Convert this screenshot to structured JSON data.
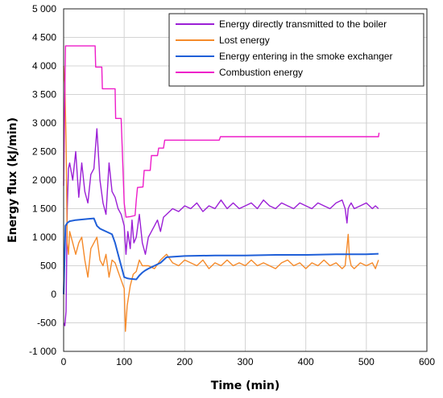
{
  "chart_data": {
    "type": "line",
    "title": "",
    "xlabel": "Time (min)",
    "ylabel": "Energy flux (kJ/min)",
    "xlim": [
      0,
      600
    ],
    "ylim": [
      -1000,
      5000
    ],
    "x_ticks": [
      "0",
      "100",
      "200",
      "300",
      "400",
      "500",
      "600"
    ],
    "y_ticks": [
      "-1 000",
      "-500",
      "0",
      "500",
      "1 000",
      "1 500",
      "2 000",
      "2 500",
      "3 000",
      "3 500",
      "4 000",
      "4 500",
      "5 000"
    ],
    "grid": true,
    "legend_position": "top-right",
    "series": [
      {
        "name": "Energy directly transmitted to the boiler",
        "color": "#9b1fd6",
        "x": [
          0,
          2,
          4,
          6,
          8,
          10,
          15,
          20,
          25,
          30,
          35,
          40,
          45,
          50,
          55,
          60,
          65,
          70,
          75,
          80,
          85,
          90,
          95,
          100,
          103,
          106,
          110,
          113,
          116,
          120,
          125,
          130,
          135,
          140,
          145,
          150,
          155,
          160,
          165,
          170,
          180,
          190,
          200,
          210,
          220,
          230,
          240,
          250,
          260,
          270,
          280,
          290,
          300,
          310,
          320,
          330,
          340,
          350,
          360,
          370,
          380,
          390,
          400,
          410,
          420,
          430,
          440,
          450,
          460,
          465,
          468,
          470,
          472,
          475,
          480,
          490,
          500,
          510,
          515,
          520
        ],
        "y": [
          -500,
          -550,
          -300,
          1500,
          2200,
          2300,
          2000,
          2500,
          1700,
          2300,
          1800,
          1600,
          2100,
          2200,
          2900,
          2000,
          1600,
          1400,
          2300,
          1800,
          1700,
          1500,
          1400,
          1200,
          700,
          1100,
          800,
          1300,
          900,
          1000,
          1400,
          900,
          700,
          1000,
          1100,
          1200,
          1300,
          1100,
          1350,
          1400,
          1500,
          1450,
          1550,
          1500,
          1600,
          1450,
          1550,
          1500,
          1650,
          1500,
          1600,
          1500,
          1550,
          1600,
          1500,
          1650,
          1550,
          1500,
          1600,
          1550,
          1500,
          1600,
          1550,
          1500,
          1600,
          1550,
          1500,
          1600,
          1650,
          1500,
          1250,
          1500,
          1550,
          1600,
          1500,
          1550,
          1600,
          1500,
          1550,
          1500
        ]
      },
      {
        "name": "Lost energy",
        "color": "#f58a2a",
        "x": [
          0,
          2,
          4,
          6,
          8,
          10,
          15,
          20,
          25,
          30,
          35,
          40,
          45,
          50,
          55,
          60,
          65,
          70,
          75,
          80,
          85,
          90,
          95,
          100,
          102,
          105,
          110,
          115,
          120,
          125,
          130,
          140,
          150,
          160,
          170,
          180,
          190,
          200,
          210,
          220,
          230,
          240,
          250,
          260,
          270,
          280,
          290,
          300,
          310,
          320,
          330,
          340,
          350,
          360,
          370,
          380,
          390,
          400,
          410,
          420,
          430,
          440,
          450,
          460,
          465,
          470,
          472,
          475,
          480,
          490,
          500,
          510,
          515,
          520
        ],
        "y": [
          4000,
          3700,
          2700,
          900,
          700,
          1100,
          900,
          700,
          900,
          1000,
          600,
          300,
          800,
          900,
          1000,
          600,
          500,
          700,
          300,
          600,
          550,
          400,
          250,
          100,
          -650,
          -200,
          150,
          350,
          400,
          600,
          500,
          500,
          450,
          600,
          700,
          550,
          500,
          600,
          550,
          500,
          600,
          450,
          550,
          500,
          600,
          500,
          550,
          500,
          600,
          500,
          550,
          500,
          450,
          550,
          600,
          500,
          550,
          450,
          550,
          500,
          600,
          500,
          550,
          450,
          500,
          1050,
          650,
          500,
          450,
          550,
          500,
          550,
          450,
          600
        ]
      },
      {
        "name": "Energy entering in the smoke exchanger",
        "color": "#1f5fd8",
        "x": [
          0,
          3,
          6,
          10,
          20,
          30,
          40,
          50,
          55,
          60,
          70,
          80,
          85,
          90,
          95,
          100,
          105,
          110,
          120,
          125,
          130,
          135,
          140,
          150,
          160,
          170,
          200,
          250,
          300,
          350,
          400,
          450,
          500,
          520
        ],
        "y": [
          0,
          1200,
          1250,
          1280,
          1300,
          1310,
          1320,
          1330,
          1200,
          1150,
          1100,
          1050,
          900,
          700,
          500,
          300,
          280,
          270,
          260,
          330,
          380,
          420,
          450,
          500,
          550,
          650,
          670,
          680,
          680,
          690,
          690,
          700,
          700,
          710
        ]
      },
      {
        "name": "Combustion energy",
        "color": "#ee1cc9",
        "x": [
          0,
          3,
          5,
          52,
          53,
          63,
          64,
          75,
          76,
          85,
          86,
          95,
          97,
          100,
          103,
          110,
          118,
          120,
          122,
          131,
          133,
          143,
          145,
          155,
          157,
          165,
          167,
          257,
          259,
          520,
          521
        ],
        "y": [
          1900,
          4350,
          4350,
          4350,
          3980,
          3980,
          3600,
          3600,
          3600,
          3600,
          3080,
          3080,
          2500,
          1600,
          1350,
          1360,
          1380,
          1650,
          1870,
          1880,
          2170,
          2170,
          2430,
          2430,
          2560,
          2560,
          2700,
          2700,
          2760,
          2760,
          2830
        ]
      }
    ]
  }
}
